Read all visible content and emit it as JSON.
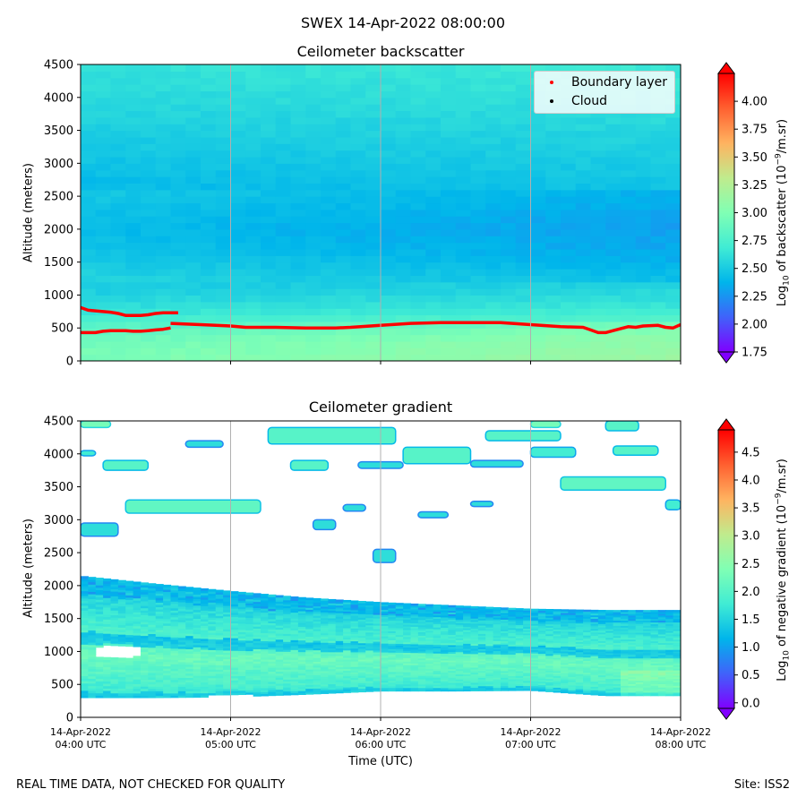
{
  "suptitle": "SWEX 14-Apr-2022 08:00:00",
  "footer_left": "REAL TIME DATA, NOT CHECKED FOR QUALITY",
  "footer_right": "Site: ISS2",
  "xlabel": "Time (UTC)",
  "chart_data": [
    {
      "type": "heatmap",
      "title": "Ceilometer backscatter",
      "xlabel": "Time (UTC)",
      "ylabel": "Altitude (meters)",
      "ylim": [
        0,
        4500
      ],
      "yticks": [
        "0",
        "500",
        "1000",
        "1500",
        "2000",
        "2500",
        "3000",
        "3500",
        "4000",
        "4500"
      ],
      "xticks": [
        {
          "date": "14-Apr-2022",
          "time": "04:00 UTC"
        },
        {
          "date": "14-Apr-2022",
          "time": "05:00 UTC"
        },
        {
          "date": "14-Apr-2022",
          "time": "06:00 UTC"
        },
        {
          "date": "14-Apr-2022",
          "time": "07:00 UTC"
        },
        {
          "date": "14-Apr-2022",
          "time": "08:00 UTC"
        }
      ],
      "xlim_hours": [
        4,
        8
      ],
      "grid": "vertical",
      "colorbar": {
        "label_prefix": "Log",
        "label_sub": "10",
        "label_main": " of backscatter (10",
        "label_sup": "−9",
        "label_suffix": "/m.sr)",
        "range": [
          1.75,
          4.25
        ],
        "ticks": [
          "1.75",
          "2.00",
          "2.25",
          "2.50",
          "2.75",
          "3.00",
          "3.25",
          "3.50",
          "3.75",
          "4.00"
        ],
        "tick_values": [
          1.75,
          2.0,
          2.25,
          2.5,
          2.75,
          3.0,
          3.25,
          3.5,
          3.75,
          4.0
        ],
        "colormap": "rainbow"
      },
      "legend": {
        "placement": "top-right",
        "entries": [
          {
            "label": "Boundary layer",
            "color": "#ff0000"
          },
          {
            "label": "Cloud",
            "color": "#000000"
          }
        ]
      },
      "boundary_layer": {
        "upper_segment": {
          "hours": [
            4.0,
            4.05,
            4.1,
            4.2,
            4.25,
            4.3,
            4.4,
            4.45,
            4.5,
            4.55,
            4.65
          ],
          "altitude_m": [
            810,
            770,
            760,
            740,
            720,
            690,
            690,
            700,
            720,
            730,
            730
          ]
        },
        "lower_segment": {
          "hours": [
            4.0,
            4.1,
            4.15,
            4.2,
            4.3,
            4.35,
            4.4,
            4.45,
            4.5,
            4.55,
            4.6
          ],
          "altitude_m": [
            430,
            430,
            450,
            460,
            460,
            450,
            450,
            460,
            470,
            480,
            500
          ]
        },
        "main_segment": {
          "hours": [
            4.6,
            4.8,
            5.0,
            5.1,
            5.3,
            5.5,
            5.7,
            5.8,
            6.0,
            6.2,
            6.4,
            6.6,
            6.8,
            7.0,
            7.2,
            7.35,
            7.4,
            7.45,
            7.5,
            7.55,
            7.65,
            7.7,
            7.75,
            7.85,
            7.9,
            7.95,
            8.0
          ],
          "altitude_m": [
            570,
            550,
            530,
            510,
            510,
            500,
            500,
            510,
            540,
            570,
            580,
            580,
            580,
            550,
            520,
            510,
            470,
            430,
            430,
            460,
            520,
            510,
            530,
            540,
            510,
            500,
            550
          ]
        }
      },
      "background_profile": {
        "altitude_m": [
          0,
          300,
          500,
          700,
          900,
          1200,
          1600,
          2000,
          2400,
          2800,
          3200,
          3600,
          4000,
          4500
        ],
        "log10_backscatter": [
          3.0,
          2.95,
          2.85,
          2.7,
          2.6,
          2.5,
          2.4,
          2.35,
          2.4,
          2.45,
          2.5,
          2.55,
          2.6,
          2.65
        ]
      }
    },
    {
      "type": "heatmap",
      "title": "Ceilometer gradient",
      "xlabel": "Time (UTC)",
      "ylabel": "Altitude (meters)",
      "ylim": [
        0,
        4500
      ],
      "yticks": [
        "0",
        "500",
        "1000",
        "1500",
        "2000",
        "2500",
        "3000",
        "3500",
        "4000",
        "4500"
      ],
      "xticks": [
        {
          "date": "14-Apr-2022",
          "time": "04:00 UTC"
        },
        {
          "date": "14-Apr-2022",
          "time": "05:00 UTC"
        },
        {
          "date": "14-Apr-2022",
          "time": "06:00 UTC"
        },
        {
          "date": "14-Apr-2022",
          "time": "07:00 UTC"
        },
        {
          "date": "14-Apr-2022",
          "time": "08:00 UTC"
        }
      ],
      "xlim_hours": [
        4,
        8
      ],
      "grid": "vertical",
      "colorbar": {
        "label_prefix": "Log",
        "label_sub": "10",
        "label_main": " of negative gradient (10",
        "label_sup": "−9",
        "label_suffix": "/m.sr)",
        "range": [
          -0.1,
          4.9
        ],
        "ticks": [
          "0.0",
          "0.5",
          "1.0",
          "1.5",
          "2.0",
          "2.5",
          "3.0",
          "3.5",
          "4.0",
          "4.5"
        ],
        "tick_values": [
          0.0,
          0.5,
          1.0,
          1.5,
          2.0,
          2.5,
          3.0,
          3.5,
          4.0,
          4.5
        ],
        "colormap": "rainbow"
      },
      "aerosol_layer": {
        "hours": [
          4.0,
          4.5,
          5.0,
          5.5,
          6.0,
          6.5,
          7.0,
          7.5,
          8.0
        ],
        "top_m": [
          2150,
          2030,
          1920,
          1820,
          1750,
          1700,
          1650,
          1630,
          1630
        ],
        "base_m": [
          300,
          300,
          310,
          350,
          400,
          400,
          410,
          330,
          330
        ],
        "core_log10_gradient": 2.2
      },
      "gaps": [
        {
          "hours": [
            4.1,
            4.42
          ],
          "altitude_m": [
            920,
            1080
          ]
        },
        {
          "hours": [
            4.87,
            5.15
          ],
          "altitude_m": [
            290,
            340
          ]
        }
      ],
      "cloud_patches": [
        {
          "hours": [
            4.0,
            4.2
          ],
          "altitude_m": [
            4400,
            4500
          ],
          "log10_gradient": 2.3
        },
        {
          "hours": [
            4.0,
            4.1
          ],
          "altitude_m": [
            3970,
            4050
          ],
          "log10_gradient": 1.8
        },
        {
          "hours": [
            4.15,
            4.45
          ],
          "altitude_m": [
            3750,
            3900
          ],
          "log10_gradient": 2.0
        },
        {
          "hours": [
            4.3,
            5.2
          ],
          "altitude_m": [
            3100,
            3300
          ],
          "log10_gradient": 2.1
        },
        {
          "hours": [
            4.0,
            4.25
          ],
          "altitude_m": [
            2750,
            2950
          ],
          "log10_gradient": 1.6
        },
        {
          "hours": [
            4.7,
            4.95
          ],
          "altitude_m": [
            4100,
            4200
          ],
          "log10_gradient": 1.6
        },
        {
          "hours": [
            5.25,
            6.1
          ],
          "altitude_m": [
            4150,
            4400
          ],
          "log10_gradient": 2.0
        },
        {
          "hours": [
            5.4,
            5.65
          ],
          "altitude_m": [
            3750,
            3900
          ],
          "log10_gradient": 2.0
        },
        {
          "hours": [
            5.85,
            6.15
          ],
          "altitude_m": [
            3780,
            3880
          ],
          "log10_gradient": 1.6
        },
        {
          "hours": [
            6.15,
            6.6
          ],
          "altitude_m": [
            3850,
            4100
          ],
          "log10_gradient": 2.0
        },
        {
          "hours": [
            6.6,
            6.95
          ],
          "altitude_m": [
            3800,
            3900
          ],
          "log10_gradient": 1.6
        },
        {
          "hours": [
            6.7,
            7.2
          ],
          "altitude_m": [
            4200,
            4350
          ],
          "log10_gradient": 2.0
        },
        {
          "hours": [
            7.0,
            7.2
          ],
          "altitude_m": [
            4400,
            4500
          ],
          "log10_gradient": 2.3
        },
        {
          "hours": [
            7.0,
            7.3
          ],
          "altitude_m": [
            3950,
            4100
          ],
          "log10_gradient": 1.8
        },
        {
          "hours": [
            7.2,
            7.9
          ],
          "altitude_m": [
            3450,
            3650
          ],
          "log10_gradient": 2.1
        },
        {
          "hours": [
            7.55,
            7.85
          ],
          "altitude_m": [
            3980,
            4120
          ],
          "log10_gradient": 2.0
        },
        {
          "hours": [
            7.9,
            8.0
          ],
          "altitude_m": [
            3150,
            3300
          ],
          "log10_gradient": 1.8
        },
        {
          "hours": [
            5.75,
            5.9
          ],
          "altitude_m": [
            3130,
            3230
          ],
          "log10_gradient": 1.6
        },
        {
          "hours": [
            7.5,
            7.72
          ],
          "altitude_m": [
            4350,
            4500
          ],
          "log10_gradient": 2.0
        },
        {
          "hours": [
            5.55,
            5.7
          ],
          "altitude_m": [
            2850,
            3000
          ],
          "log10_gradient": 1.6
        },
        {
          "hours": [
            5.95,
            6.1
          ],
          "altitude_m": [
            2350,
            2550
          ],
          "log10_gradient": 1.6
        },
        {
          "hours": [
            6.6,
            6.75
          ],
          "altitude_m": [
            3200,
            3280
          ],
          "log10_gradient": 1.6
        },
        {
          "hours": [
            6.25,
            6.45
          ],
          "altitude_m": [
            3030,
            3120
          ],
          "log10_gradient": 1.6
        }
      ]
    }
  ]
}
